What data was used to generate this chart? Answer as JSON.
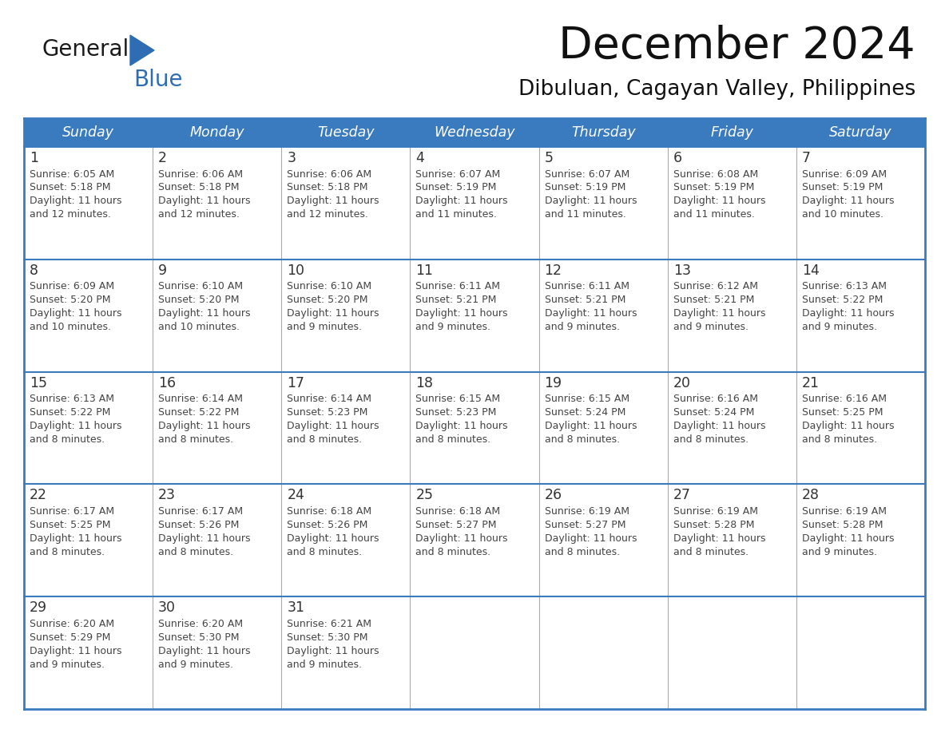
{
  "title": "December 2024",
  "subtitle": "Dibuluan, Cagayan Valley, Philippines",
  "header_color": "#3a7abf",
  "header_text_color": "#ffffff",
  "cell_border_color": "#3a7abf",
  "row_divider_color": "#3a7abf",
  "col_divider_color": "#aaaaaa",
  "day_number_color": "#333333",
  "cell_text_color": "#444444",
  "bg_color": "#ffffff",
  "days_of_week": [
    "Sunday",
    "Monday",
    "Tuesday",
    "Wednesday",
    "Thursday",
    "Friday",
    "Saturday"
  ],
  "weeks": [
    [
      {
        "day": 1,
        "sunrise": "6:05 AM",
        "sunset": "5:18 PM",
        "daylight_hours": 11,
        "daylight_minutes": 12
      },
      {
        "day": 2,
        "sunrise": "6:06 AM",
        "sunset": "5:18 PM",
        "daylight_hours": 11,
        "daylight_minutes": 12
      },
      {
        "day": 3,
        "sunrise": "6:06 AM",
        "sunset": "5:18 PM",
        "daylight_hours": 11,
        "daylight_minutes": 12
      },
      {
        "day": 4,
        "sunrise": "6:07 AM",
        "sunset": "5:19 PM",
        "daylight_hours": 11,
        "daylight_minutes": 11
      },
      {
        "day": 5,
        "sunrise": "6:07 AM",
        "sunset": "5:19 PM",
        "daylight_hours": 11,
        "daylight_minutes": 11
      },
      {
        "day": 6,
        "sunrise": "6:08 AM",
        "sunset": "5:19 PM",
        "daylight_hours": 11,
        "daylight_minutes": 11
      },
      {
        "day": 7,
        "sunrise": "6:09 AM",
        "sunset": "5:19 PM",
        "daylight_hours": 11,
        "daylight_minutes": 10
      }
    ],
    [
      {
        "day": 8,
        "sunrise": "6:09 AM",
        "sunset": "5:20 PM",
        "daylight_hours": 11,
        "daylight_minutes": 10
      },
      {
        "day": 9,
        "sunrise": "6:10 AM",
        "sunset": "5:20 PM",
        "daylight_hours": 11,
        "daylight_minutes": 10
      },
      {
        "day": 10,
        "sunrise": "6:10 AM",
        "sunset": "5:20 PM",
        "daylight_hours": 11,
        "daylight_minutes": 9
      },
      {
        "day": 11,
        "sunrise": "6:11 AM",
        "sunset": "5:21 PM",
        "daylight_hours": 11,
        "daylight_minutes": 9
      },
      {
        "day": 12,
        "sunrise": "6:11 AM",
        "sunset": "5:21 PM",
        "daylight_hours": 11,
        "daylight_minutes": 9
      },
      {
        "day": 13,
        "sunrise": "6:12 AM",
        "sunset": "5:21 PM",
        "daylight_hours": 11,
        "daylight_minutes": 9
      },
      {
        "day": 14,
        "sunrise": "6:13 AM",
        "sunset": "5:22 PM",
        "daylight_hours": 11,
        "daylight_minutes": 9
      }
    ],
    [
      {
        "day": 15,
        "sunrise": "6:13 AM",
        "sunset": "5:22 PM",
        "daylight_hours": 11,
        "daylight_minutes": 8
      },
      {
        "day": 16,
        "sunrise": "6:14 AM",
        "sunset": "5:22 PM",
        "daylight_hours": 11,
        "daylight_minutes": 8
      },
      {
        "day": 17,
        "sunrise": "6:14 AM",
        "sunset": "5:23 PM",
        "daylight_hours": 11,
        "daylight_minutes": 8
      },
      {
        "day": 18,
        "sunrise": "6:15 AM",
        "sunset": "5:23 PM",
        "daylight_hours": 11,
        "daylight_minutes": 8
      },
      {
        "day": 19,
        "sunrise": "6:15 AM",
        "sunset": "5:24 PM",
        "daylight_hours": 11,
        "daylight_minutes": 8
      },
      {
        "day": 20,
        "sunrise": "6:16 AM",
        "sunset": "5:24 PM",
        "daylight_hours": 11,
        "daylight_minutes": 8
      },
      {
        "day": 21,
        "sunrise": "6:16 AM",
        "sunset": "5:25 PM",
        "daylight_hours": 11,
        "daylight_minutes": 8
      }
    ],
    [
      {
        "day": 22,
        "sunrise": "6:17 AM",
        "sunset": "5:25 PM",
        "daylight_hours": 11,
        "daylight_minutes": 8
      },
      {
        "day": 23,
        "sunrise": "6:17 AM",
        "sunset": "5:26 PM",
        "daylight_hours": 11,
        "daylight_minutes": 8
      },
      {
        "day": 24,
        "sunrise": "6:18 AM",
        "sunset": "5:26 PM",
        "daylight_hours": 11,
        "daylight_minutes": 8
      },
      {
        "day": 25,
        "sunrise": "6:18 AM",
        "sunset": "5:27 PM",
        "daylight_hours": 11,
        "daylight_minutes": 8
      },
      {
        "day": 26,
        "sunrise": "6:19 AM",
        "sunset": "5:27 PM",
        "daylight_hours": 11,
        "daylight_minutes": 8
      },
      {
        "day": 27,
        "sunrise": "6:19 AM",
        "sunset": "5:28 PM",
        "daylight_hours": 11,
        "daylight_minutes": 8
      },
      {
        "day": 28,
        "sunrise": "6:19 AM",
        "sunset": "5:28 PM",
        "daylight_hours": 11,
        "daylight_minutes": 9
      }
    ],
    [
      {
        "day": 29,
        "sunrise": "6:20 AM",
        "sunset": "5:29 PM",
        "daylight_hours": 11,
        "daylight_minutes": 9
      },
      {
        "day": 30,
        "sunrise": "6:20 AM",
        "sunset": "5:30 PM",
        "daylight_hours": 11,
        "daylight_minutes": 9
      },
      {
        "day": 31,
        "sunrise": "6:21 AM",
        "sunset": "5:30 PM",
        "daylight_hours": 11,
        "daylight_minutes": 9
      },
      null,
      null,
      null,
      null
    ]
  ],
  "logo_color_general": "#1a1a1a",
  "logo_color_blue": "#2e6db4",
  "logo_triangle_color": "#2e6db4"
}
